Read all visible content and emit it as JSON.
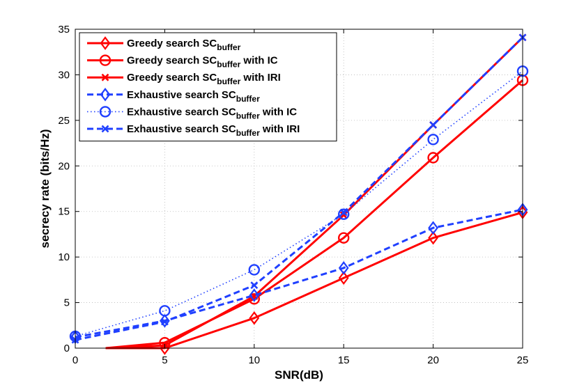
{
  "chart_data": {
    "type": "line",
    "xlabel": "SNR(dB)",
    "ylabel": "secrecy rate (bits/Hz)",
    "xlim": [
      0,
      25
    ],
    "ylim": [
      0,
      35
    ],
    "xticks": [
      "0",
      "5",
      "10",
      "15",
      "20",
      "25"
    ],
    "yticks": [
      "0",
      "5",
      "10",
      "15",
      "20",
      "25",
      "30",
      "35"
    ],
    "grid": true,
    "legend_position": "top-left",
    "series": [
      {
        "name": "Greedy search SC",
        "sub": "buffer",
        "suffix": "",
        "color": "#ff0000",
        "dash": "solid",
        "marker": "diamond",
        "x": [
          1.7,
          5,
          10,
          15,
          20,
          25
        ],
        "y": [
          0,
          0,
          3.3,
          7.7,
          12.1,
          14.9
        ]
      },
      {
        "name": "Greedy search SC",
        "sub": "buffer",
        "suffix": " with IC",
        "color": "#ff0000",
        "dash": "solid",
        "marker": "circle",
        "x": [
          1.7,
          5,
          10,
          15,
          20,
          25
        ],
        "y": [
          0,
          0.6,
          5.4,
          12.1,
          20.9,
          29.4
        ]
      },
      {
        "name": "Greedy search SC",
        "sub": "buffer",
        "suffix": " with IRI",
        "color": "#ff0000",
        "dash": "solid",
        "marker": "x",
        "x": [
          1.7,
          5,
          10,
          15,
          20,
          25
        ],
        "y": [
          0,
          0.3,
          5.7,
          14.6,
          24.5,
          34.1
        ]
      },
      {
        "name": "Exhaustive search SC",
        "sub": "buffer",
        "suffix": "",
        "color": "#2040ff",
        "dash": "dashed",
        "marker": "diamond",
        "x": [
          0,
          5,
          10,
          15,
          20,
          25
        ],
        "y": [
          1.2,
          3.0,
          5.8,
          8.8,
          13.2,
          15.2
        ]
      },
      {
        "name": "Exhaustive search SC",
        "sub": "buffer",
        "suffix": " with IC",
        "color": "#2040ff",
        "dash": "dotted",
        "marker": "circle",
        "x": [
          0,
          5,
          10,
          15,
          20,
          25
        ],
        "y": [
          1.3,
          4.1,
          8.6,
          14.7,
          22.9,
          30.4
        ]
      },
      {
        "name": "Exhaustive search SC",
        "sub": "buffer",
        "suffix": " with IRI",
        "color": "#2040ff",
        "dash": "dashed",
        "marker": "x",
        "x": [
          0,
          5,
          10,
          15,
          20,
          25
        ],
        "y": [
          0.9,
          2.9,
          6.9,
          14.9,
          24.5,
          34.1
        ]
      }
    ]
  }
}
